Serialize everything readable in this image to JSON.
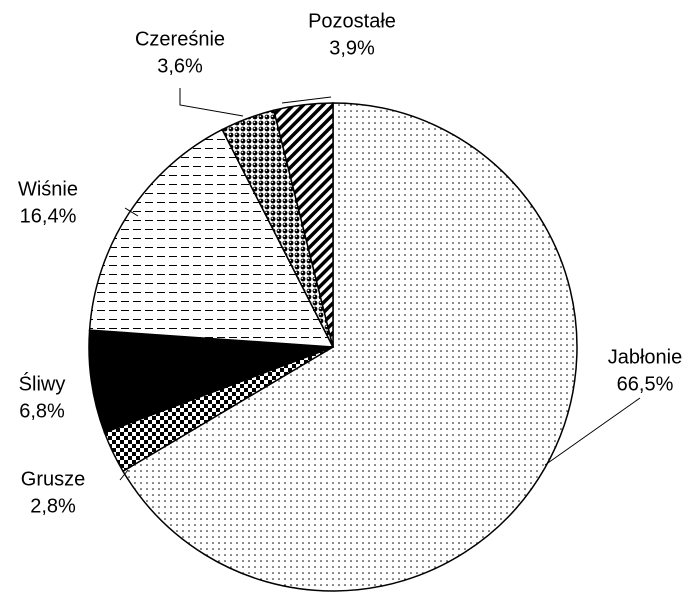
{
  "chart_data": {
    "type": "pie",
    "categories": [
      "Jabłonie",
      "Grusze",
      "Śliwy",
      "Wiśnie",
      "Czereśnie",
      "Pozostałe"
    ],
    "values": [
      66.5,
      2.8,
      6.8,
      16.4,
      3.6,
      3.9
    ],
    "value_labels": [
      "66,5%",
      "2,8%",
      "6,8%",
      "16,4%",
      "3,6%",
      "3,9%"
    ]
  }
}
